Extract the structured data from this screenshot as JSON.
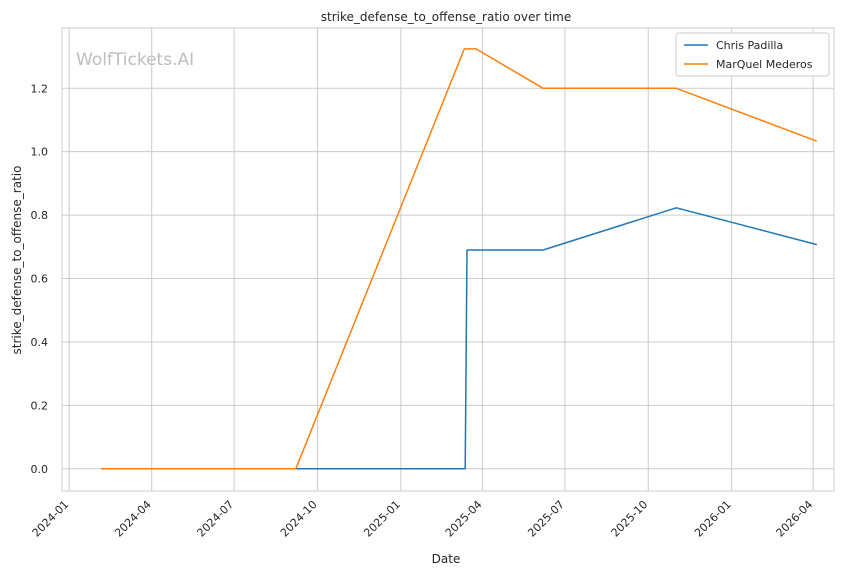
{
  "chart_data": {
    "type": "line",
    "title": "strike_defense_to_offense_ratio over time",
    "xlabel": "Date",
    "ylabel": "strike_defense_to_offense_ratio",
    "watermark": "WolfTickets.AI",
    "x_ticks": [
      "2024-01",
      "2024-04",
      "2024-07",
      "2024-10",
      "2025-01",
      "2025-04",
      "2025-07",
      "2025-10",
      "2026-01",
      "2026-04"
    ],
    "y_ticks": [
      "0.0",
      "0.2",
      "0.4",
      "0.6",
      "0.8",
      "1.0",
      "1.2"
    ],
    "xlim": [
      "2023-12-24",
      "2026-04-24"
    ],
    "ylim": [
      -0.07,
      1.39
    ],
    "grid": true,
    "legend_position": "top-right",
    "series": [
      {
        "name": "Chris Padilla",
        "color": "#1f77b4",
        "points": [
          {
            "x": "2024-04-25",
            "y": 0.0
          },
          {
            "x": "2025-03-13",
            "y": 0.0
          },
          {
            "x": "2025-03-15",
            "y": 0.69
          },
          {
            "x": "2025-06-07",
            "y": 0.69
          },
          {
            "x": "2025-11-01",
            "y": 0.823
          },
          {
            "x": "2026-04-05",
            "y": 0.707
          }
        ]
      },
      {
        "name": "MarQuel Mederos",
        "color": "#ff7f0e",
        "points": [
          {
            "x": "2024-02-05",
            "y": 0.0
          },
          {
            "x": "2024-09-07",
            "y": 0.0
          },
          {
            "x": "2025-03-12",
            "y": 1.324
          },
          {
            "x": "2025-03-25",
            "y": 1.324
          },
          {
            "x": "2025-06-07",
            "y": 1.2
          },
          {
            "x": "2025-11-01",
            "y": 1.2
          },
          {
            "x": "2026-04-05",
            "y": 1.033
          }
        ]
      }
    ]
  }
}
